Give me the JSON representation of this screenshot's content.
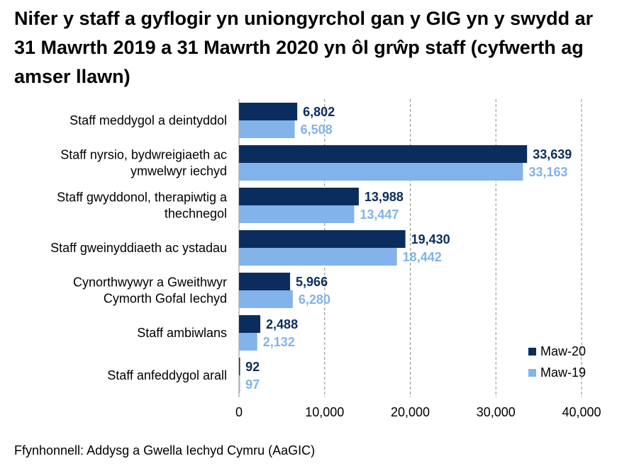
{
  "title": "Nifer y staff a gyflogir yn uniongyrchol gan y GIG yn y swydd ar 31 Mawrth 2019 a 31 Mawrth 2020 yn ôl grŵp staff (cyfwerth ag amser llawn)",
  "source": "Ffynhonnell: Addysg a Gwella Iechyd Cymru (AaGIC)",
  "colors": {
    "series1": "#0b2d5e",
    "series2": "#82b3eb",
    "grid": "#8c8c8c",
    "axis": "#8c8c8c"
  },
  "chart_data": {
    "type": "bar",
    "orientation": "horizontal",
    "categories": [
      [
        "Staff meddygol a deintyddol"
      ],
      [
        "Staff nyrsio, bydwreigiaeth ac",
        "ymwelwyr iechyd"
      ],
      [
        "Staff gwyddonol, therapiwtig a",
        "thechnegol"
      ],
      [
        "Staff gweinyddiaeth ac ystadau"
      ],
      [
        "Cynorthwywyr a Gweithwyr",
        "Cymorth Gofal Iechyd"
      ],
      [
        "Staff ambiwlans"
      ],
      [
        "Staff anfeddygol arall"
      ]
    ],
    "series": [
      {
        "name": "Maw-20",
        "values": [
          6802,
          33639,
          13988,
          19430,
          5966,
          2488,
          92
        ],
        "labels": [
          "6,802",
          "33,639",
          "13,988",
          "19,430",
          "5,966",
          "2,488",
          "92"
        ]
      },
      {
        "name": "Maw-19",
        "values": [
          6508,
          33163,
          13447,
          18442,
          6280,
          2132,
          97
        ],
        "labels": [
          "6,508",
          "33,163",
          "13,447",
          "18,442",
          "6,280",
          "2,132",
          "97"
        ]
      }
    ],
    "xlim": [
      0,
      40000
    ],
    "xticks": [
      0,
      10000,
      20000,
      30000,
      40000
    ],
    "xtick_labels": [
      "0",
      "10,000",
      "20,000",
      "30,000",
      "40,000"
    ],
    "grid": "vertical dashed",
    "legend_position": "bottom-right"
  }
}
